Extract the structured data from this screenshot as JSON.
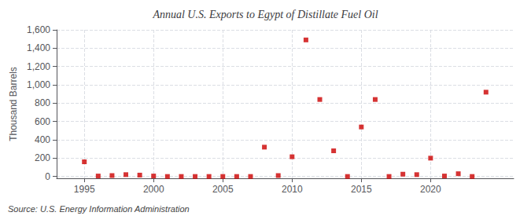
{
  "chart_data": {
    "type": "scatter",
    "title": "Annual U.S. Exports to Egypt of Distillate Fuel Oil",
    "ylabel": "Thousand Barrels",
    "annotations": [
      "Source: U.S. Energy Information Administration"
    ],
    "x": [
      1995,
      1996,
      1997,
      1998,
      1999,
      2000,
      2001,
      2002,
      2003,
      2004,
      2005,
      2006,
      2007,
      2008,
      2009,
      2010,
      2011,
      2012,
      2013,
      2014,
      2015,
      2016,
      2017,
      2018,
      2019,
      2020,
      2021,
      2022,
      2023,
      2024
    ],
    "values": [
      160,
      5,
      10,
      20,
      15,
      5,
      0,
      0,
      0,
      0,
      0,
      0,
      0,
      320,
      10,
      215,
      1490,
      840,
      280,
      0,
      540,
      840,
      0,
      25,
      20,
      200,
      5,
      30,
      0,
      920
    ],
    "color": "#cc0000",
    "marker": "square",
    "xlim": [
      1993,
      2026
    ],
    "xticks": [
      1995,
      2000,
      2005,
      2010,
      2015,
      2020
    ],
    "ylim": [
      -20,
      1600
    ],
    "yticks": [
      0,
      200,
      400,
      600,
      800,
      {
        "value": 1000,
        "label": "1,000"
      },
      {
        "value": 1200,
        "label": "1,200"
      },
      {
        "value": 1400,
        "label": "1,400"
      },
      {
        "value": 1600,
        "label": "1,600"
      }
    ],
    "grid": true
  }
}
